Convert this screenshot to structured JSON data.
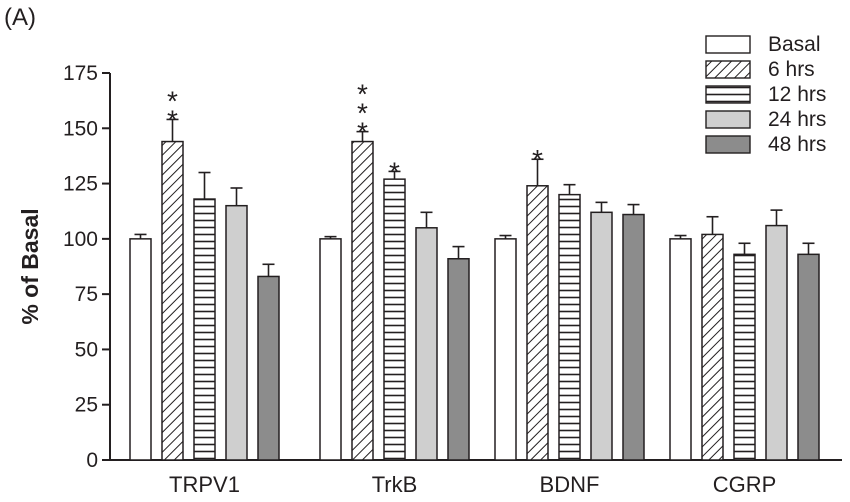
{
  "panel_label": "(A)",
  "chart_data": {
    "type": "bar",
    "title": "",
    "xlabel": "",
    "ylabel": "% of Basal",
    "ylim": [
      0,
      175
    ],
    "yticks": [
      0,
      25,
      50,
      75,
      100,
      125,
      150,
      175
    ],
    "categories": [
      "TRPV1",
      "TrkB",
      "BDNF",
      "CGRP"
    ],
    "legend_position": "top-right",
    "series": [
      {
        "name": "Basal",
        "pattern": "white",
        "color": "#ffffff",
        "values": [
          100,
          100,
          100,
          100
        ],
        "errors": [
          2,
          1,
          1.5,
          1.5
        ]
      },
      {
        "name": "6 hrs",
        "pattern": "diagonal",
        "color": "#ffffff",
        "values": [
          144,
          144,
          124,
          102
        ],
        "errors": [
          10,
          4.5,
          12,
          8
        ]
      },
      {
        "name": "12 hrs",
        "pattern": "horizontal",
        "color": "#ffffff",
        "values": [
          118,
          127,
          120,
          93
        ],
        "errors": [
          12,
          3.5,
          4.5,
          5
        ]
      },
      {
        "name": "24 hrs",
        "pattern": "solid",
        "color": "#cfcfcf",
        "values": [
          115,
          105,
          112,
          106
        ],
        "errors": [
          8,
          7,
          4.5,
          7
        ]
      },
      {
        "name": "48 hrs",
        "pattern": "solid",
        "color": "#8c8c8c",
        "values": [
          83,
          91,
          111,
          93
        ],
        "errors": [
          5.5,
          5.5,
          4.5,
          5
        ]
      }
    ],
    "annotations": [
      {
        "category": "TRPV1",
        "series": "6 hrs",
        "text": "**"
      },
      {
        "category": "TrkB",
        "series": "6 hrs",
        "text": "***"
      },
      {
        "category": "TrkB",
        "series": "12 hrs",
        "text": "*"
      },
      {
        "category": "BDNF",
        "series": "6 hrs",
        "text": "*"
      }
    ]
  }
}
